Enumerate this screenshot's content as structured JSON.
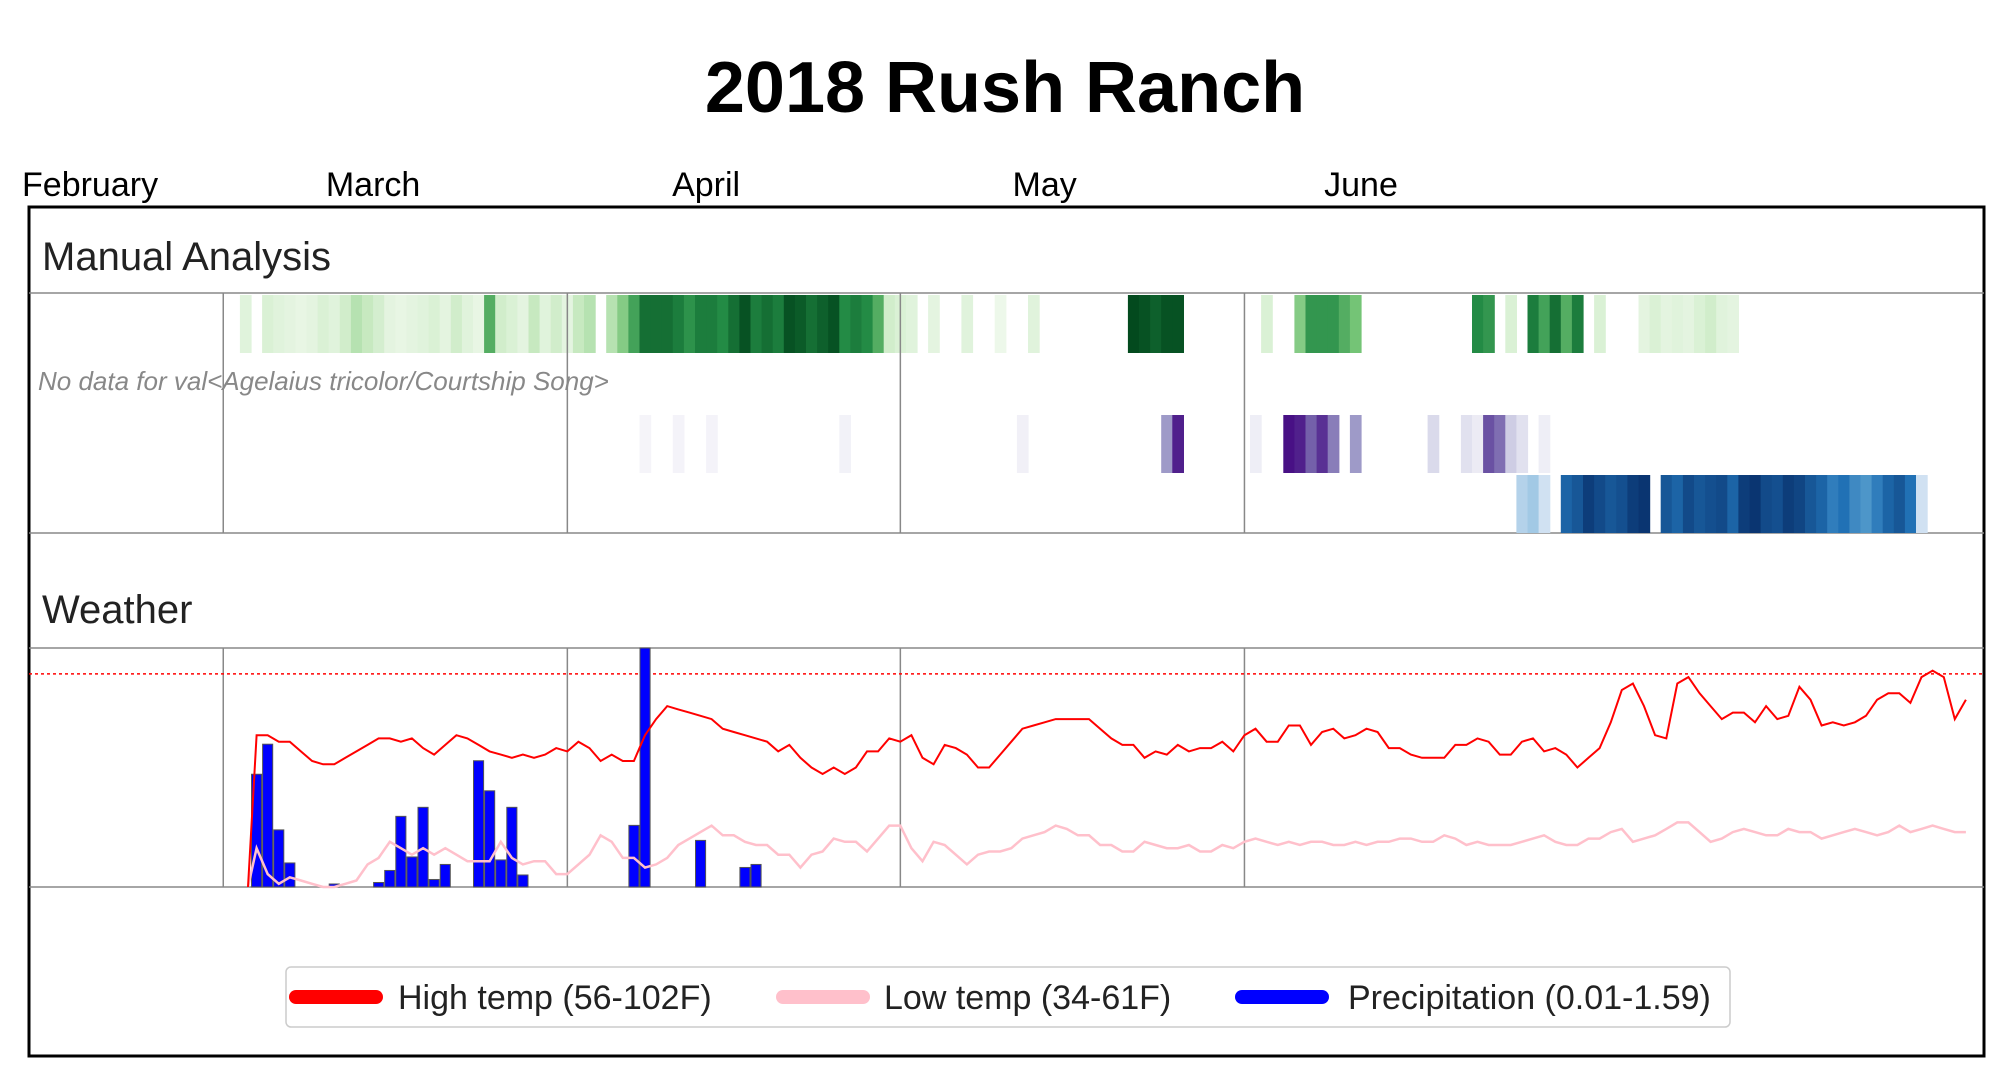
{
  "chart_data": {
    "type": "heatmap",
    "title": "2018 Rush Ranch",
    "months": [
      "February",
      "March",
      "April",
      "May",
      "June"
    ],
    "sections": {
      "manual": "Manual Analysis",
      "weather": "Weather"
    },
    "no_data_note": "No data for val<Agelaius tricolor/Courtship Song>",
    "date_range": {
      "start": "2018-02-12",
      "end": "2018-06-20"
    },
    "heatmap_rows": [
      {
        "row": 1,
        "colormap": "green",
        "values": [
          0,
          0,
          0,
          0,
          0,
          0,
          0,
          0,
          0,
          0,
          0,
          0,
          0,
          0,
          0,
          0,
          0,
          0,
          0,
          0.12,
          0,
          0.15,
          0.12,
          0.1,
          0.08,
          0.1,
          0.15,
          0.12,
          0.2,
          0.3,
          0.25,
          0.18,
          0.1,
          0.08,
          0.1,
          0.12,
          0.15,
          0.1,
          0.2,
          0.12,
          0.08,
          0.6,
          0.2,
          0.15,
          0.1,
          0.25,
          0.12,
          0.2,
          0.1,
          0.25,
          0.3,
          0,
          0.3,
          0.45,
          0.65,
          0.85,
          0.85,
          0.85,
          0.8,
          0.72,
          0.8,
          0.8,
          0.75,
          0.85,
          0.95,
          0.8,
          0.85,
          0.8,
          0.95,
          0.92,
          0.85,
          0.9,
          0.95,
          0.75,
          0.8,
          0.75,
          0.6,
          0.2,
          0.15,
          0.12,
          0,
          0.1,
          0,
          0,
          0.12,
          0,
          0,
          0.05,
          0,
          0,
          0.12,
          0,
          0,
          0,
          0,
          0,
          0,
          0,
          0,
          0.98,
          0.95,
          0.9,
          0.95,
          0.95,
          0,
          0,
          0,
          0,
          0,
          0,
          0,
          0.15,
          0,
          0,
          0.45,
          0.7,
          0.7,
          0.7,
          0.6,
          0.5,
          0,
          0,
          0,
          0,
          0,
          0,
          0,
          0,
          0,
          0,
          0.75,
          0.7,
          0,
          0.15,
          0,
          0.8,
          0.65,
          0.85,
          0.6,
          0.8,
          0,
          0.15,
          0,
          0,
          0,
          0.1,
          0.15,
          0.1,
          0.12,
          0.1,
          0.15,
          0.2,
          0.12,
          0.1,
          0,
          0,
          0,
          0,
          0,
          0,
          0,
          0,
          0,
          0,
          0,
          0,
          0,
          0
        ]
      },
      {
        "row": 2,
        "colormap": "none",
        "values": []
      },
      {
        "row": 3,
        "colormap": "purple",
        "values": [
          0,
          0,
          0,
          0,
          0,
          0,
          0,
          0,
          0,
          0,
          0,
          0,
          0,
          0,
          0,
          0,
          0,
          0,
          0,
          0,
          0,
          0,
          0,
          0,
          0,
          0,
          0,
          0,
          0,
          0,
          0,
          0,
          0,
          0,
          0,
          0,
          0,
          0,
          0,
          0,
          0,
          0,
          0,
          0,
          0,
          0,
          0,
          0,
          0,
          0,
          0,
          0,
          0,
          0,
          0,
          0.05,
          0,
          0,
          0.06,
          0,
          0,
          0.06,
          0,
          0,
          0,
          0,
          0,
          0,
          0,
          0,
          0,
          0,
          0,
          0.07,
          0,
          0,
          0,
          0,
          0,
          0,
          0,
          0,
          0,
          0,
          0,
          0,
          0,
          0,
          0,
          0.08,
          0,
          0,
          0,
          0,
          0,
          0,
          0,
          0,
          0,
          0,
          0,
          0,
          0.5,
          0.9,
          0,
          0,
          0,
          0,
          0,
          0,
          0.1,
          0,
          0,
          0.95,
          0.9,
          0.7,
          0.85,
          0.6,
          0,
          0.5,
          0,
          0,
          0,
          0,
          0,
          0,
          0.25,
          0,
          0,
          0.2,
          0.12,
          0.75,
          0.65,
          0.3,
          0.2,
          0,
          0.1,
          0,
          0,
          0,
          0,
          0,
          0,
          0,
          0,
          0,
          0,
          0,
          0,
          0,
          0,
          0,
          0,
          0,
          0,
          0,
          0,
          0,
          0,
          0,
          0,
          0,
          0,
          0,
          0,
          0,
          0
        ]
      },
      {
        "row": 4,
        "colormap": "blue",
        "values": [
          0,
          0,
          0,
          0,
          0,
          0,
          0,
          0,
          0,
          0,
          0,
          0,
          0,
          0,
          0,
          0,
          0,
          0,
          0,
          0,
          0,
          0,
          0,
          0,
          0,
          0,
          0,
          0,
          0,
          0,
          0,
          0,
          0,
          0,
          0,
          0,
          0,
          0,
          0,
          0,
          0,
          0,
          0,
          0,
          0,
          0,
          0,
          0,
          0,
          0,
          0,
          0,
          0,
          0,
          0,
          0,
          0,
          0,
          0,
          0,
          0,
          0,
          0,
          0,
          0,
          0,
          0,
          0,
          0,
          0,
          0,
          0,
          0,
          0,
          0,
          0,
          0,
          0,
          0,
          0,
          0,
          0,
          0,
          0,
          0,
          0,
          0,
          0,
          0,
          0,
          0,
          0,
          0,
          0,
          0,
          0,
          0,
          0,
          0,
          0,
          0,
          0,
          0,
          0,
          0,
          0,
          0,
          0,
          0,
          0,
          0,
          0,
          0,
          0,
          0,
          0,
          0,
          0,
          0,
          0,
          0,
          0,
          0,
          0,
          0,
          0,
          0,
          0,
          0,
          0,
          0,
          0,
          0,
          0,
          0.3,
          0.35,
          0.2,
          0,
          0.8,
          0.85,
          0.95,
          0.9,
          0.85,
          0.88,
          0.95,
          0.98,
          0,
          0.85,
          0.8,
          0.9,
          0.85,
          0.88,
          0.9,
          0.8,
          0.95,
          0.98,
          0.9,
          0.88,
          0.95,
          0.92,
          0.85,
          0.8,
          0.7,
          0.75,
          0.65,
          0.6,
          0.7,
          0.8,
          0.85,
          0.75,
          0.2
        ]
      }
    ],
    "weather": {
      "high_temp_range": [
        56,
        102
      ],
      "low_temp_range": [
        34,
        61
      ],
      "precip_range": [
        0.01,
        1.59
      ],
      "high_temp": [
        null,
        null,
        null,
        null,
        null,
        null,
        null,
        null,
        null,
        null,
        null,
        null,
        null,
        null,
        null,
        null,
        null,
        null,
        null,
        null,
        81,
        81,
        79,
        79,
        76,
        73,
        72,
        72,
        74,
        76,
        78,
        80,
        80,
        79,
        80,
        77,
        75,
        78,
        81,
        80,
        78,
        76,
        75,
        74,
        75,
        74,
        75,
        77,
        76,
        79,
        77,
        73,
        75,
        73,
        73,
        81,
        86,
        90,
        89,
        88,
        87,
        86,
        83,
        82,
        81,
        80,
        79,
        76,
        78,
        74,
        71,
        69,
        71,
        69,
        71,
        76,
        76,
        80,
        79,
        81,
        74,
        72,
        78,
        77,
        75,
        71,
        71,
        75,
        79,
        83,
        84,
        85,
        86,
        86,
        86,
        86,
        83,
        80,
        78,
        78,
        74,
        76,
        75,
        78,
        76,
        77,
        77,
        79,
        76,
        81,
        83,
        79,
        79,
        84,
        84,
        78,
        82,
        83,
        80,
        81,
        83,
        82,
        77,
        77,
        75,
        74,
        74,
        74,
        78,
        78,
        80,
        79,
        75,
        75,
        79,
        80,
        76,
        77,
        75,
        71,
        74,
        77,
        85,
        95,
        97,
        90,
        81,
        80,
        97,
        99,
        94,
        90,
        86,
        88,
        88,
        85,
        90,
        86,
        87,
        96,
        92,
        84,
        85,
        84,
        85,
        87,
        92,
        94,
        94,
        91,
        99,
        101,
        99,
        86,
        92
      ],
      "low_temp": [
        null,
        null,
        null,
        null,
        null,
        null,
        null,
        null,
        null,
        null,
        null,
        null,
        null,
        null,
        null,
        null,
        null,
        null,
        null,
        null,
        46,
        38,
        35,
        37,
        36,
        35,
        34,
        34,
        35,
        36,
        41,
        43,
        48,
        46,
        44,
        46,
        44,
        46,
        44,
        42,
        42,
        42,
        48,
        43,
        41,
        42,
        42,
        38,
        38,
        41,
        44,
        50,
        48,
        43,
        43,
        40,
        41,
        43,
        47,
        49,
        51,
        53,
        50,
        50,
        48,
        47,
        47,
        44,
        44,
        40,
        44,
        45,
        49,
        48,
        48,
        45,
        49,
        53,
        53,
        46,
        42,
        48,
        47,
        44,
        41,
        44,
        45,
        45,
        46,
        49,
        50,
        51,
        53,
        52,
        50,
        50,
        47,
        47,
        45,
        45,
        48,
        47,
        46,
        46,
        47,
        45,
        45,
        47,
        46,
        48,
        49,
        48,
        47,
        48,
        47,
        48,
        48,
        47,
        47,
        48,
        47,
        48,
        48,
        49,
        49,
        48,
        48,
        50,
        49,
        47,
        48,
        47,
        47,
        47,
        48,
        49,
        50,
        48,
        47,
        47,
        49,
        49,
        51,
        52,
        48,
        49,
        50,
        52,
        54,
        54,
        51,
        48,
        49,
        51,
        52,
        51,
        50,
        50,
        52,
        51,
        51,
        49,
        50,
        51,
        52,
        51,
        50,
        51,
        53,
        51,
        52,
        53,
        52,
        51,
        51
      ]
    },
    "precip_bars": [
      {
        "day": 20,
        "value": 0.75
      },
      {
        "day": 21,
        "value": 0.95
      },
      {
        "day": 22,
        "value": 0.38
      },
      {
        "day": 23,
        "value": 0.16
      },
      {
        "day": 27,
        "value": 0.02
      },
      {
        "day": 31,
        "value": 0.03
      },
      {
        "day": 32,
        "value": 0.11
      },
      {
        "day": 33,
        "value": 0.47
      },
      {
        "day": 34,
        "value": 0.2
      },
      {
        "day": 35,
        "value": 0.53
      },
      {
        "day": 36,
        "value": 0.05
      },
      {
        "day": 37,
        "value": 0.15
      },
      {
        "day": 40,
        "value": 0.84
      },
      {
        "day": 41,
        "value": 0.64
      },
      {
        "day": 42,
        "value": 0.18
      },
      {
        "day": 43,
        "value": 0.53
      },
      {
        "day": 44,
        "value": 0.08
      },
      {
        "day": 54,
        "value": 0.41
      },
      {
        "day": 55,
        "value": 1.59
      },
      {
        "day": 60,
        "value": 0.31
      },
      {
        "day": 64,
        "value": 0.13
      },
      {
        "day": 65,
        "value": 0.15
      }
    ],
    "legend": {
      "placement": "bottom-center",
      "entries": [
        {
          "label": "High temp (56-102F)",
          "color": "#ff0000"
        },
        {
          "label": "Low temp (34-61F)",
          "color": "#ffc0cb"
        },
        {
          "label": "Precipitation (0.01-1.59)",
          "color": "#0000ff"
        }
      ]
    },
    "colors": {
      "high_temp": "#ff0000",
      "low_temp": "#ffc0cb",
      "precip": "#0000ff",
      "frame": "#000000",
      "grid": "#888888",
      "threshold": "#ff0000"
    },
    "threshold_line_temp": 100
  }
}
